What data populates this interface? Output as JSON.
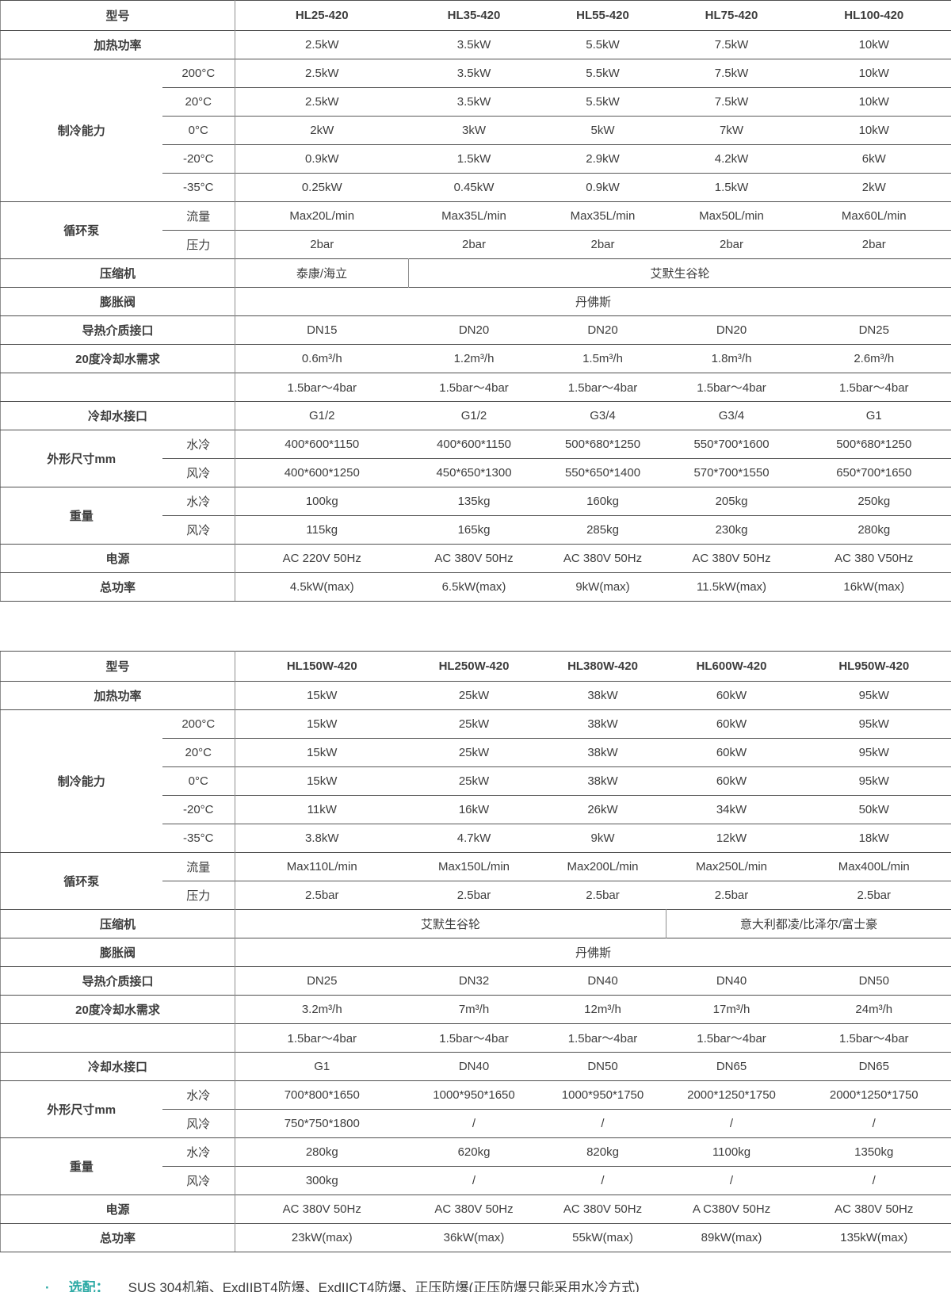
{
  "tables": [
    {
      "model_label": "型号",
      "models": [
        "HL25-420",
        "HL35-420",
        "HL55-420",
        "HL75-420",
        "HL100-420"
      ],
      "rows": [
        {
          "type": "simple",
          "label": "加热功率",
          "values": [
            "2.5kW",
            "3.5kW",
            "5.5kW",
            "7.5kW",
            "10kW"
          ]
        },
        {
          "type": "group",
          "label": "制冷能力",
          "subrows": [
            {
              "sub": "200°C",
              "values": [
                "2.5kW",
                "3.5kW",
                "5.5kW",
                "7.5kW",
                "10kW"
              ]
            },
            {
              "sub": "20°C",
              "values": [
                "2.5kW",
                "3.5kW",
                "5.5kW",
                "7.5kW",
                "10kW"
              ]
            },
            {
              "sub": "0°C",
              "values": [
                "2kW",
                "3kW",
                "5kW",
                "7kW",
                "10kW"
              ]
            },
            {
              "sub": "-20°C",
              "values": [
                "0.9kW",
                "1.5kW",
                "2.9kW",
                "4.2kW",
                "6kW"
              ]
            },
            {
              "sub": "-35°C",
              "values": [
                "0.25kW",
                "0.45kW",
                "0.9kW",
                "1.5kW",
                "2kW"
              ]
            }
          ]
        },
        {
          "type": "group",
          "label": "循环泵",
          "subrows": [
            {
              "sub": "流量",
              "values": [
                "Max20L/min",
                "Max35L/min",
                "Max35L/min",
                "Max50L/min",
                "Max60L/min"
              ]
            },
            {
              "sub": "压力",
              "values": [
                "2bar",
                "2bar",
                "2bar",
                "2bar",
                "2bar"
              ]
            }
          ]
        },
        {
          "type": "spans",
          "label": "压缩机",
          "cells": [
            {
              "text": "泰康/海立",
              "span": 1
            },
            {
              "text": "艾默生谷轮",
              "span": 4
            }
          ]
        },
        {
          "type": "spans",
          "label": "膨胀阀",
          "cells": [
            {
              "text": "丹佛斯",
              "span": 5
            }
          ]
        },
        {
          "type": "simple",
          "label": "导热介质接口",
          "values": [
            "DN15",
            "DN20",
            "DN20",
            "DN20",
            "DN25"
          ]
        },
        {
          "type": "simple",
          "label": "20度冷却水需求",
          "values": [
            "0.6m³/h",
            "1.2m³/h",
            "1.5m³/h",
            "1.8m³/h",
            "2.6m³/h"
          ]
        },
        {
          "type": "simple",
          "label": "",
          "values": [
            "1.5bar～4bar",
            "1.5bar～4bar",
            "1.5bar～4bar",
            "1.5bar～4bar",
            "1.5bar～4bar"
          ]
        },
        {
          "type": "simple",
          "label": "冷却水接口",
          "values": [
            "G1/2",
            "G1/2",
            "G3/4",
            "G3/4",
            "G1"
          ]
        },
        {
          "type": "group",
          "label": "外形尺寸mm",
          "subrows": [
            {
              "sub": "水冷",
              "values": [
                "400*600*1150",
                "400*600*1150",
                "500*680*1250",
                "550*700*1600",
                "500*680*1250"
              ]
            },
            {
              "sub": "风冷",
              "values": [
                "400*600*1250",
                "450*650*1300",
                "550*650*1400",
                "570*700*1550",
                "650*700*1650"
              ]
            }
          ]
        },
        {
          "type": "group",
          "label": "重量",
          "subrows": [
            {
              "sub": "水冷",
              "values": [
                "100kg",
                "135kg",
                "160kg",
                "205kg",
                "250kg"
              ]
            },
            {
              "sub": "风冷",
              "values": [
                "115kg",
                "165kg",
                "285kg",
                "230kg",
                "280kg"
              ]
            }
          ]
        },
        {
          "type": "simple",
          "label": "电源",
          "values": [
            "AC 220V 50Hz",
            "AC 380V 50Hz",
            "AC 380V 50Hz",
            "AC 380V 50Hz",
            "AC 380 V50Hz"
          ]
        },
        {
          "type": "simple",
          "label": "总功率",
          "values": [
            "4.5kW(max)",
            "6.5kW(max)",
            "9kW(max)",
            "11.5kW(max)",
            "16kW(max)"
          ]
        }
      ]
    },
    {
      "model_label": "型号",
      "models": [
        "HL150W-420",
        "HL250W-420",
        "HL380W-420",
        "HL600W-420",
        "HL950W-420"
      ],
      "rows": [
        {
          "type": "simple",
          "label": "加热功率",
          "values": [
            "15kW",
            "25kW",
            "38kW",
            "60kW",
            "95kW"
          ]
        },
        {
          "type": "group",
          "label": "制冷能力",
          "subrows": [
            {
              "sub": "200°C",
              "values": [
                "15kW",
                "25kW",
                "38kW",
                "60kW",
                "95kW"
              ]
            },
            {
              "sub": "20°C",
              "values": [
                "15kW",
                "25kW",
                "38kW",
                "60kW",
                "95kW"
              ]
            },
            {
              "sub": "0°C",
              "values": [
                "15kW",
                "25kW",
                "38kW",
                "60kW",
                "95kW"
              ]
            },
            {
              "sub": "-20°C",
              "values": [
                "11kW",
                "16kW",
                "26kW",
                "34kW",
                "50kW"
              ]
            },
            {
              "sub": "-35°C",
              "values": [
                "3.8kW",
                "4.7kW",
                "9kW",
                "12kW",
                "18kW"
              ]
            }
          ]
        },
        {
          "type": "group",
          "label": "循环泵",
          "subrows": [
            {
              "sub": "流量",
              "values": [
                "Max110L/min",
                "Max150L/min",
                "Max200L/min",
                "Max250L/min",
                "Max400L/min"
              ]
            },
            {
              "sub": "压力",
              "values": [
                "2.5bar",
                "2.5bar",
                "2.5bar",
                "2.5bar",
                "2.5bar"
              ]
            }
          ]
        },
        {
          "type": "spans",
          "label": "压缩机",
          "cells": [
            {
              "text": "艾默生谷轮",
              "span": 3
            },
            {
              "text": "意大利都凌/比泽尔/富士豪",
              "span": 2
            }
          ]
        },
        {
          "type": "spans",
          "label": "膨胀阀",
          "cells": [
            {
              "text": "丹佛斯",
              "span": 5
            }
          ]
        },
        {
          "type": "simple",
          "label": "导热介质接口",
          "values": [
            "DN25",
            "DN32",
            "DN40",
            "DN40",
            "DN50"
          ]
        },
        {
          "type": "simple",
          "label": "20度冷却水需求",
          "values": [
            "3.2m³/h",
            "7m³/h",
            "12m³/h",
            "17m³/h",
            "24m³/h"
          ]
        },
        {
          "type": "simple",
          "label": "",
          "values": [
            "1.5bar～4bar",
            "1.5bar～4bar",
            "1.5bar～4bar",
            "1.5bar～4bar",
            "1.5bar～4bar"
          ]
        },
        {
          "type": "simple",
          "label": "冷却水接口",
          "values": [
            "G1",
            "DN40",
            "DN50",
            "DN65",
            "DN65"
          ]
        },
        {
          "type": "group",
          "label": "外形尺寸mm",
          "subrows": [
            {
              "sub": "水冷",
              "values": [
                "700*800*1650",
                "1000*950*1650",
                "1000*950*1750",
                "2000*1250*1750",
                "2000*1250*1750"
              ]
            },
            {
              "sub": "风冷",
              "values": [
                "750*750*1800",
                "/",
                "/",
                "/",
                "/"
              ]
            }
          ]
        },
        {
          "type": "group",
          "label": "重量",
          "subrows": [
            {
              "sub": "水冷",
              "values": [
                "280kg",
                "620kg",
                "820kg",
                "1100kg",
                "1350kg"
              ]
            },
            {
              "sub": "风冷",
              "values": [
                "300kg",
                "/",
                "/",
                "/",
                "/"
              ]
            }
          ]
        },
        {
          "type": "simple",
          "label": "电源",
          "values": [
            "AC 380V 50Hz",
            "AC 380V 50Hz",
            "AC 380V 50Hz",
            "A C380V 50Hz",
            "AC 380V 50Hz"
          ]
        },
        {
          "type": "simple",
          "label": "总功率",
          "values": [
            "23kW(max)",
            "36kW(max)",
            "55kW(max)",
            "89kW(max)",
            "135kW(max)"
          ]
        }
      ]
    }
  ],
  "footer": {
    "bullet": "·",
    "label": "选配：",
    "text": "SUS 304机箱、ExdIIBT4防爆、ExdIICT4防爆、正压防爆(正压防爆只能采用水冷方式)",
    "accent_color": "#2ba9a4"
  },
  "colors": {
    "border_horizontal": "#4f4f4f",
    "border_vertical": "#8f8f8f",
    "text": "#3d3d3d",
    "accent": "#2ba9a4"
  }
}
